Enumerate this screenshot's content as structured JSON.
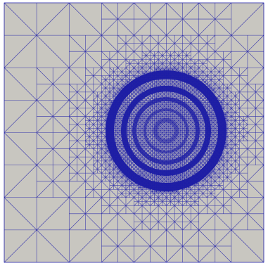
{
  "mesh": {
    "background_color": "#c8c6c0",
    "edge_color": "#1c1ca8",
    "dense_color": "#1515a0",
    "feature": "concentric-rings",
    "refinement": "adaptive"
  }
}
